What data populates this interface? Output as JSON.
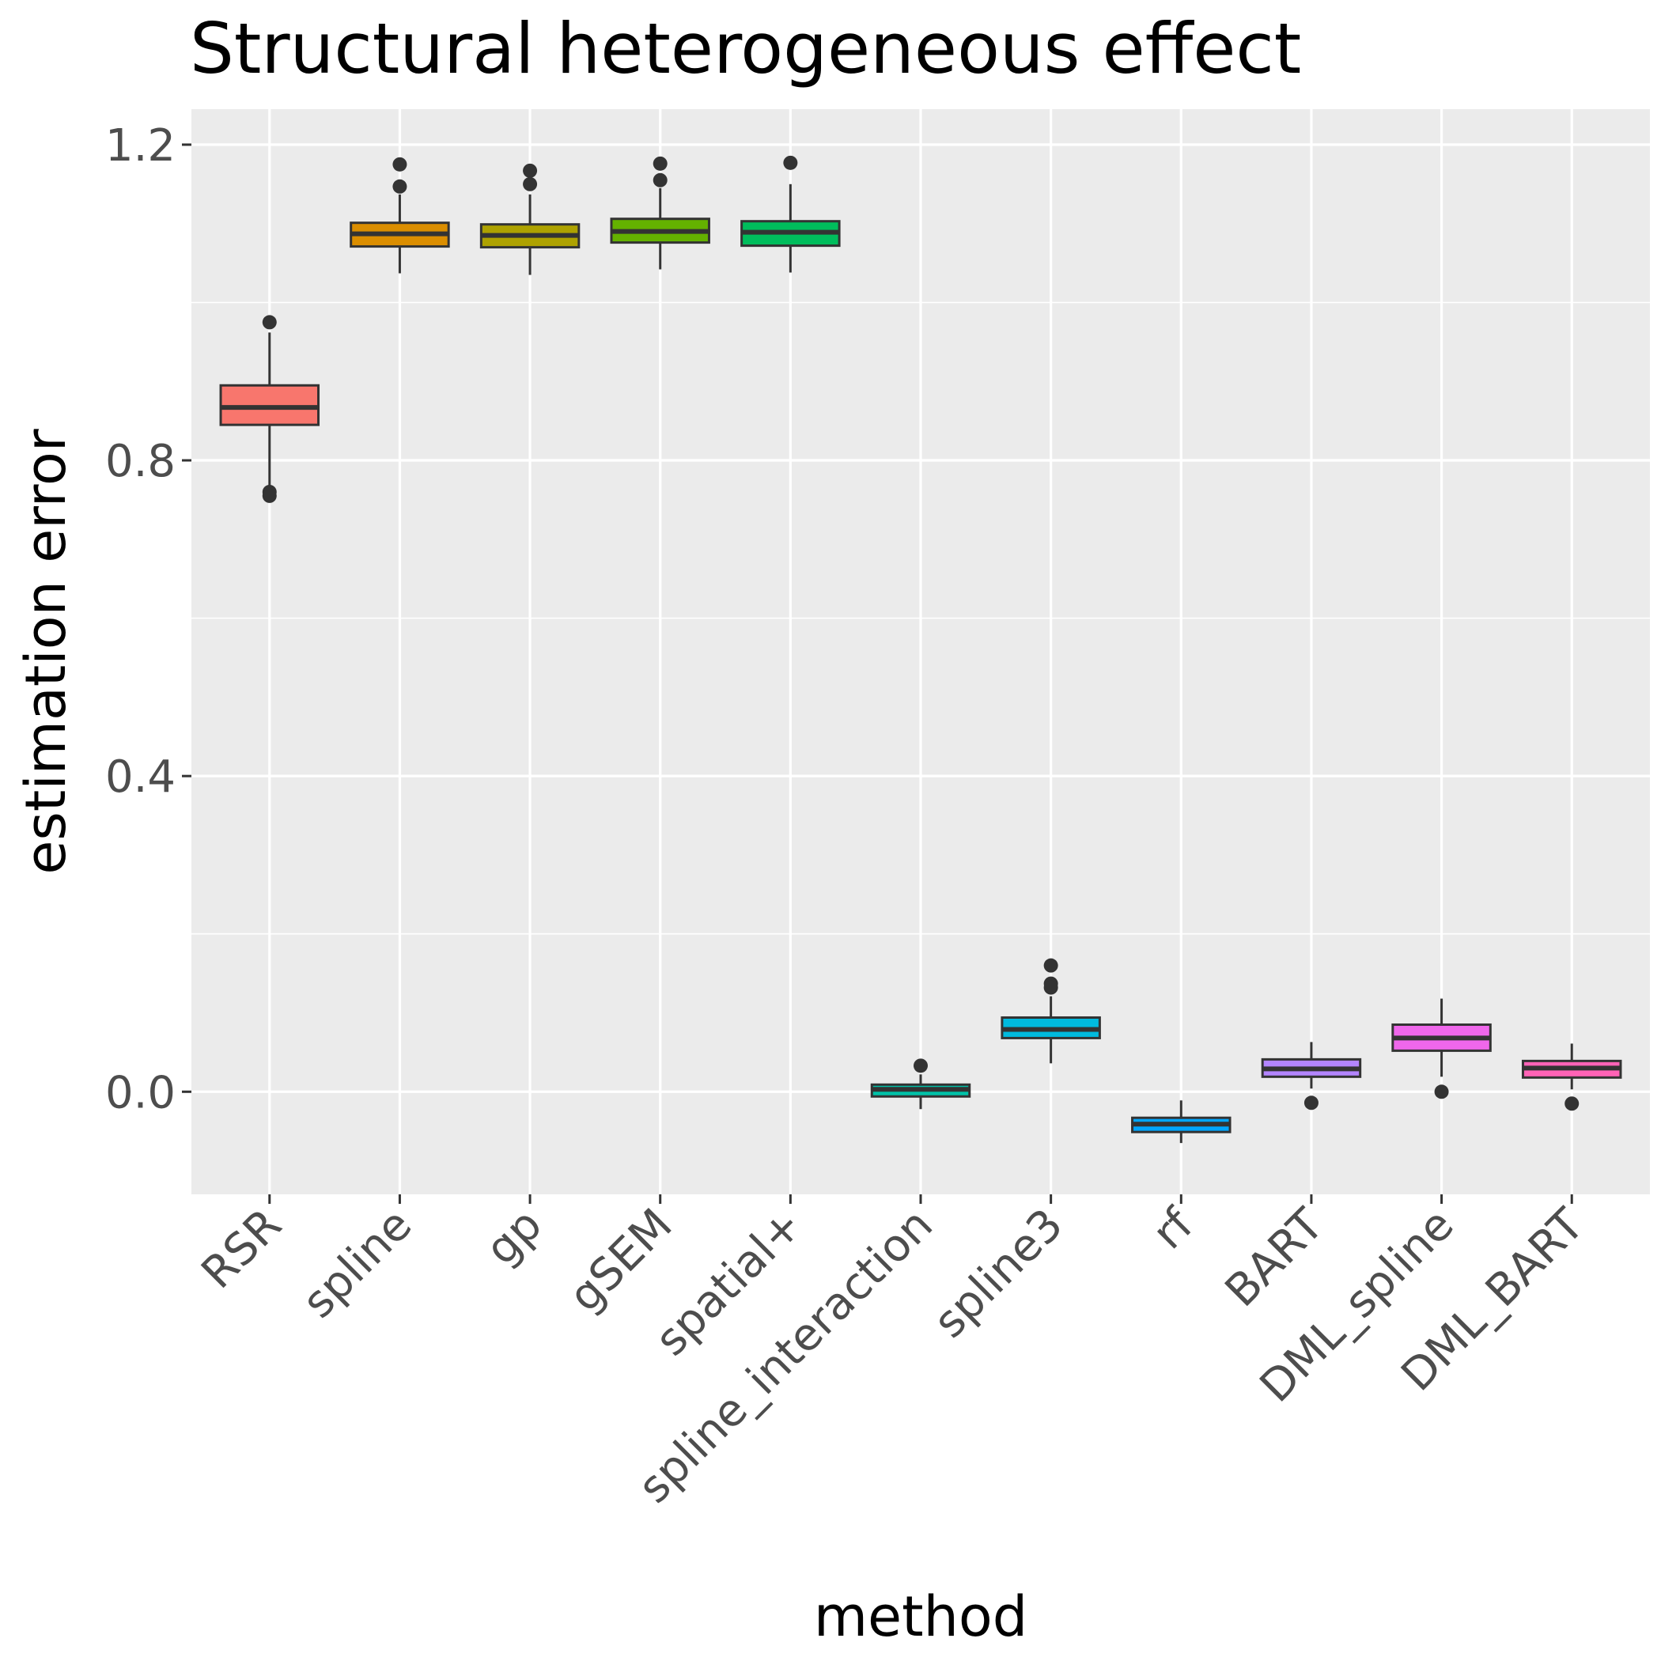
{
  "chart_data": {
    "type": "boxplot",
    "title": "Structural heterogeneous effect",
    "xlabel": "method",
    "ylabel": "estimation error",
    "ylim": [
      -0.13,
      1.245
    ],
    "yticks": [
      0.0,
      0.4,
      0.8,
      1.2
    ],
    "ytick_labels": [
      "0.0",
      "0.4",
      "0.8",
      "1.2"
    ],
    "grid": true,
    "legend": "none",
    "categories": [
      "RSR",
      "spline",
      "gp",
      "gSEM",
      "spatial+",
      "spline_interaction",
      "spline3",
      "rf",
      "BART",
      "DML_spline",
      "DML_BART"
    ],
    "boxes": [
      {
        "category": "RSR",
        "whisker_low": 0.765,
        "q1": 0.845,
        "median": 0.867,
        "q3": 0.895,
        "whisker_high": 0.962,
        "outliers": [
          0.975,
          0.76,
          0.755
        ],
        "color": "#F8766D"
      },
      {
        "category": "spline",
        "whisker_low": 1.037,
        "q1": 1.071,
        "median": 1.087,
        "q3": 1.101,
        "whisker_high": 1.137,
        "outliers": [
          1.175,
          1.147
        ],
        "color": "#DB8E00"
      },
      {
        "category": "gp",
        "whisker_low": 1.035,
        "q1": 1.07,
        "median": 1.085,
        "q3": 1.099,
        "whisker_high": 1.137,
        "outliers": [
          1.167,
          1.15
        ],
        "color": "#AEA200"
      },
      {
        "category": "gSEM",
        "whisker_low": 1.042,
        "q1": 1.076,
        "median": 1.09,
        "q3": 1.106,
        "whisker_high": 1.145,
        "outliers": [
          1.176,
          1.155
        ],
        "color": "#64B200"
      },
      {
        "category": "spatial+",
        "whisker_low": 1.038,
        "q1": 1.072,
        "median": 1.089,
        "q3": 1.103,
        "whisker_high": 1.15,
        "outliers": [
          1.177
        ],
        "color": "#00BD5C"
      },
      {
        "category": "spline_interaction",
        "whisker_low": -0.022,
        "q1": -0.006,
        "median": 0.003,
        "q3": 0.009,
        "whisker_high": 0.022,
        "outliers": [
          0.033
        ],
        "color": "#00C1A7"
      },
      {
        "category": "spline3",
        "whisker_low": 0.036,
        "q1": 0.068,
        "median": 0.079,
        "q3": 0.094,
        "whisker_high": 0.121,
        "outliers": [
          0.16,
          0.137,
          0.132
        ],
        "color": "#00BADE"
      },
      {
        "category": "rf",
        "whisker_low": -0.065,
        "q1": -0.051,
        "median": -0.041,
        "q3": -0.033,
        "whisker_high": -0.011,
        "outliers": [],
        "color": "#00A6FF"
      },
      {
        "category": "BART",
        "whisker_low": 0.004,
        "q1": 0.019,
        "median": 0.029,
        "q3": 0.041,
        "whisker_high": 0.063,
        "outliers": [
          -0.014
        ],
        "color": "#B385FF"
      },
      {
        "category": "DML_spline",
        "whisker_low": 0.019,
        "q1": 0.052,
        "median": 0.068,
        "q3": 0.085,
        "whisker_high": 0.118,
        "outliers": [
          0.0
        ],
        "color": "#EF67EB"
      },
      {
        "category": "DML_BART",
        "whisker_low": 0.003,
        "q1": 0.018,
        "median": 0.03,
        "q3": 0.039,
        "whisker_high": 0.061,
        "outliers": [
          -0.015
        ],
        "color": "#FF63B6"
      }
    ]
  }
}
